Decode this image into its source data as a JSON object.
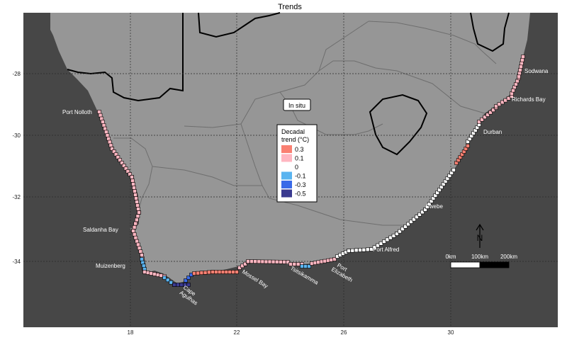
{
  "title": "Trends",
  "axes": {
    "x_ticks": [
      "18",
      "22",
      "26",
      "30"
    ],
    "y_ticks": [
      "-28",
      "-30",
      "-32",
      "-34"
    ]
  },
  "panel_label": "In situ",
  "legend": {
    "title_line1": "Decadal",
    "title_line2": "trend (°C)",
    "items": [
      {
        "label": "0.3",
        "color": "#fa8072"
      },
      {
        "label": "0.1",
        "color": "#ffb6c1"
      },
      {
        "label": "0",
        "color": "#ffffff"
      },
      {
        "label": "-0.1",
        "color": "#5ab4f0"
      },
      {
        "label": "-0.3",
        "color": "#3a6ae8"
      },
      {
        "label": "-0.5",
        "color": "#3a3a90"
      }
    ]
  },
  "places": [
    {
      "name": "Sodwana"
    },
    {
      "name": "Richards Bay"
    },
    {
      "name": "Durban"
    },
    {
      "name": "Port Nolloth"
    },
    {
      "name": "Saldanha Bay"
    },
    {
      "name": "Muizenberg"
    },
    {
      "name": "Cape Agulhas",
      "line1": "Cape",
      "line2": "Agulhas"
    },
    {
      "name": "Mossel Bay"
    },
    {
      "name": "Tsitsikamma"
    },
    {
      "name": "Port Elizabeth",
      "line1": "Port",
      "line2": "Elizabeth"
    },
    {
      "name": "Port Alfred"
    },
    {
      "name": "Cwebe"
    }
  ],
  "north_arrow": "N",
  "scale_bar": {
    "labels": [
      "0km",
      "100km",
      "200km"
    ]
  },
  "colors": {
    "ocean": "#474747",
    "land": "#969696",
    "province_border": "#6e6e6e",
    "country_border": "#000000"
  }
}
